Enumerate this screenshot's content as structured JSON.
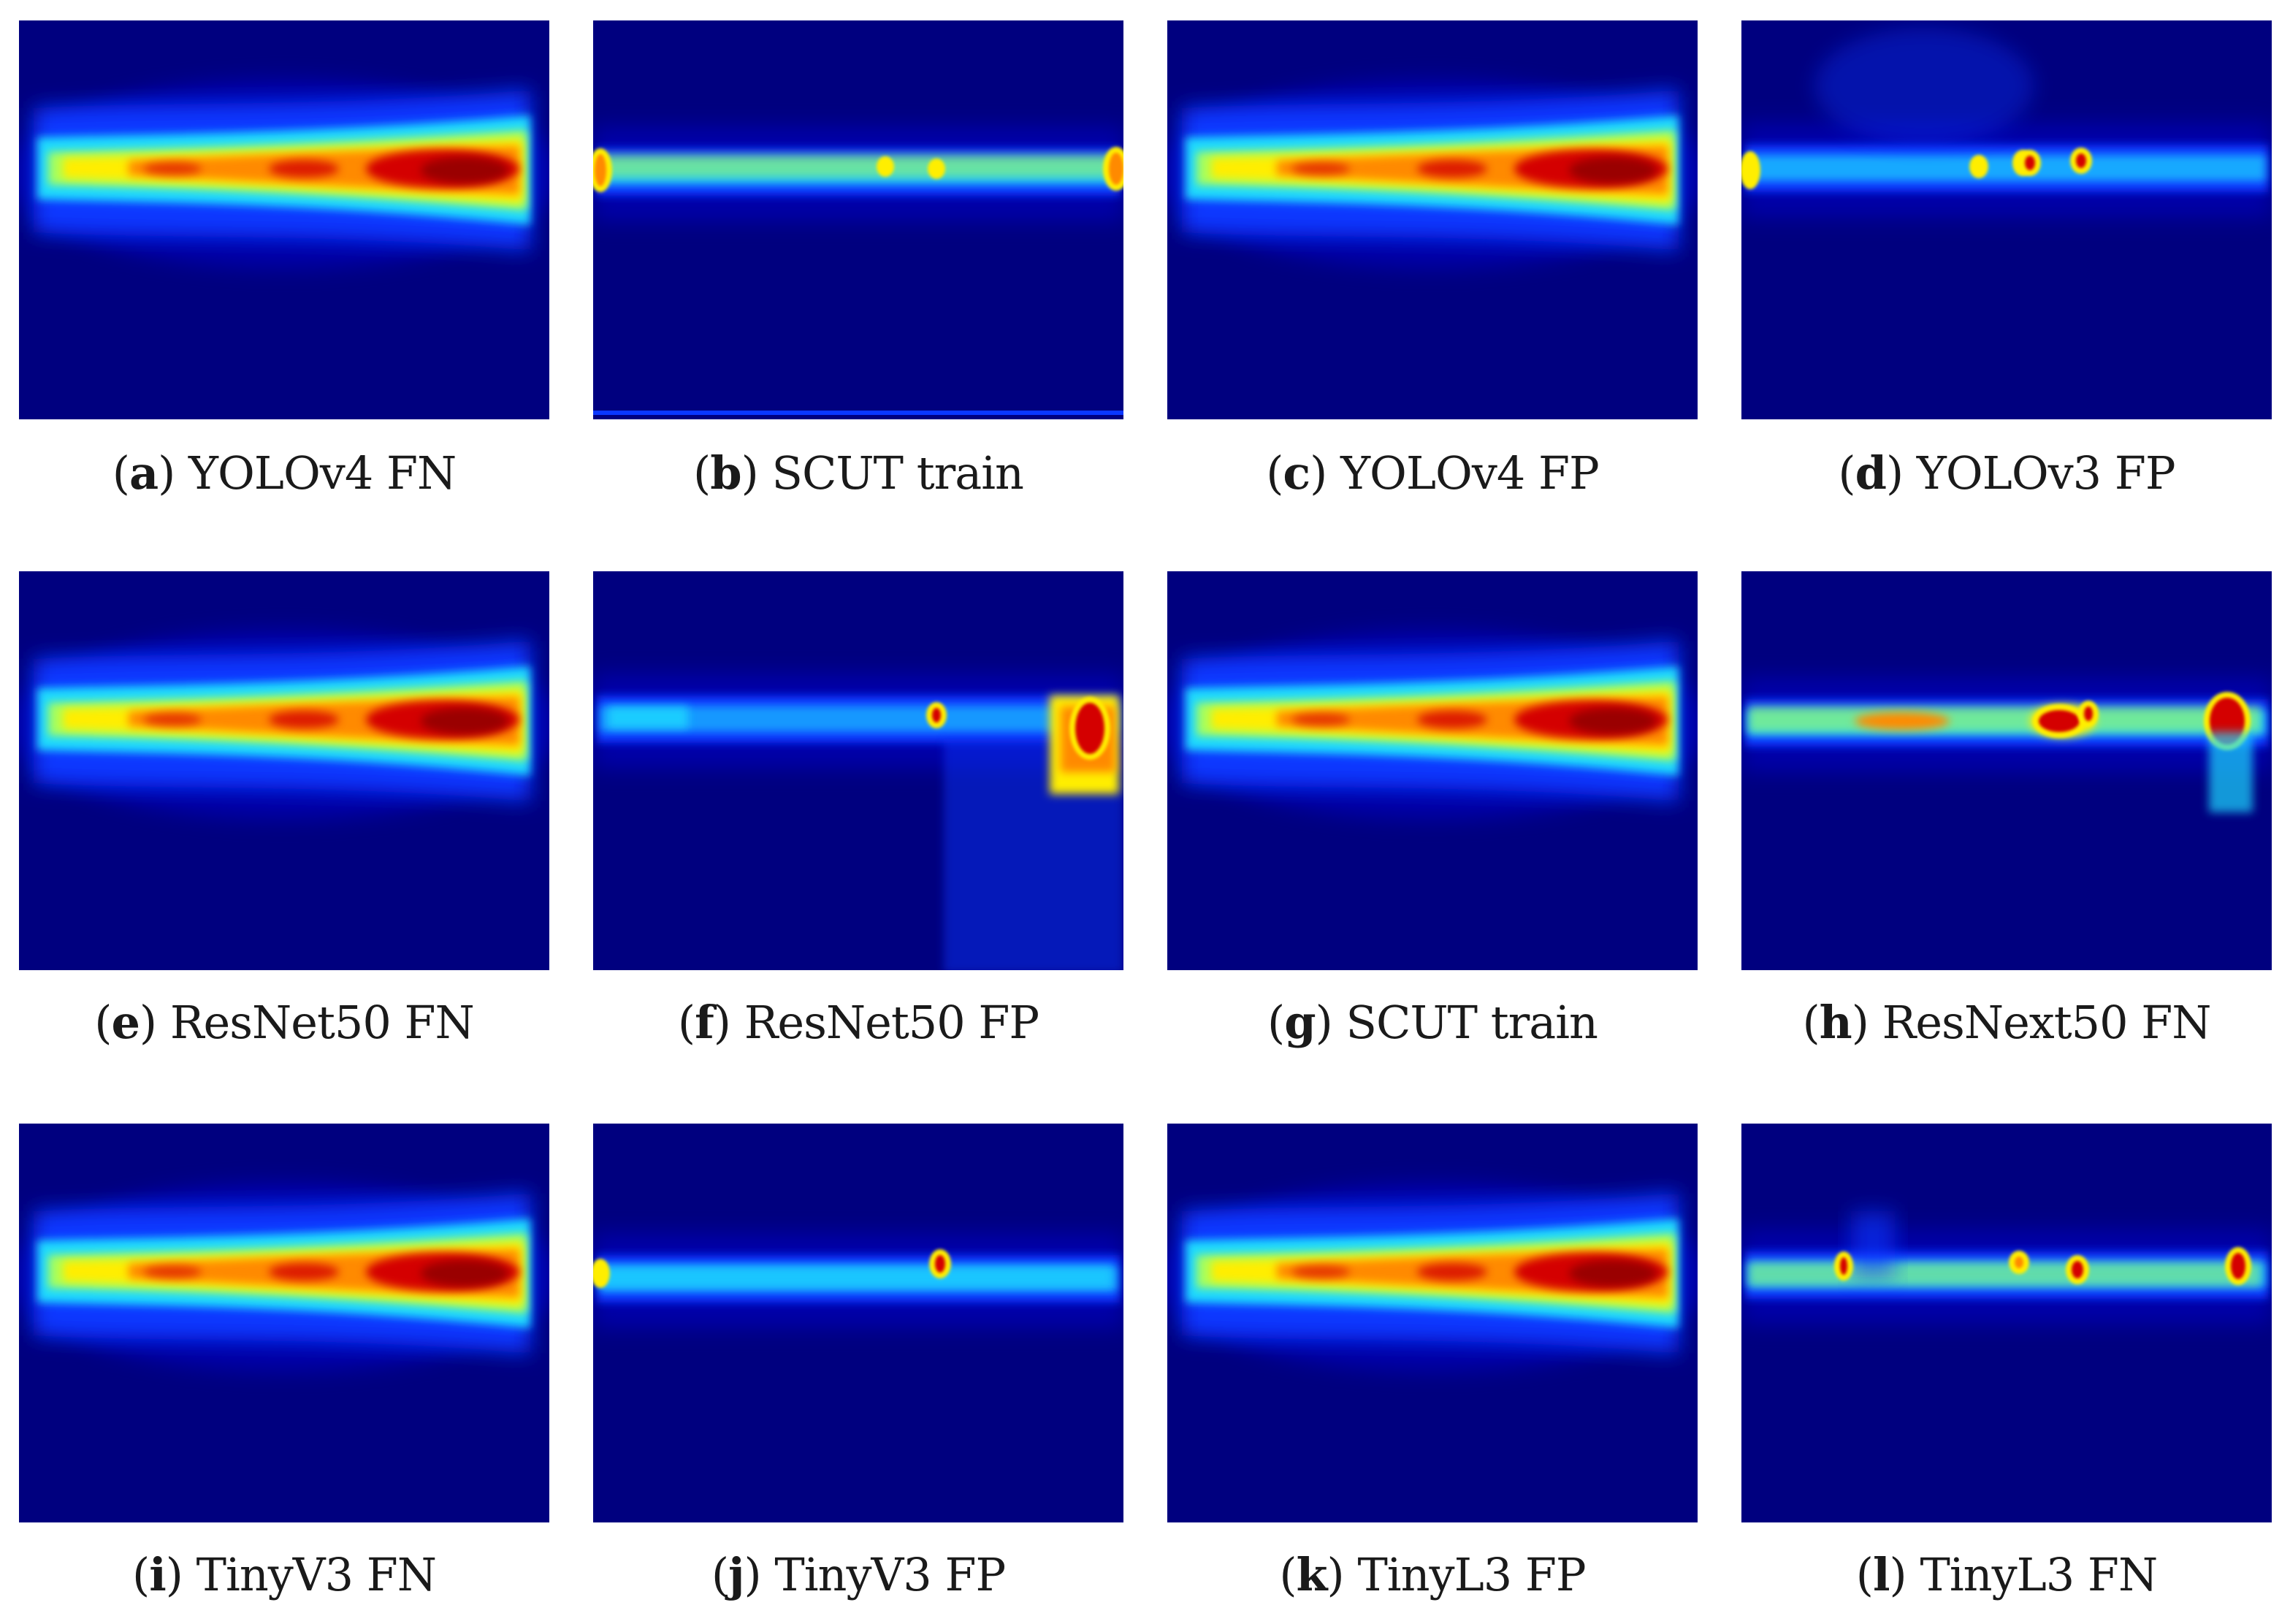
{
  "figure": {
    "panels": [
      {
        "letter": "a",
        "text": "YOLOv4 FN",
        "variant": "smooth"
      },
      {
        "letter": "b",
        "text": "SCUT train",
        "variant": "sparse-edges"
      },
      {
        "letter": "c",
        "text": "YOLOv4 FP",
        "variant": "smooth"
      },
      {
        "letter": "d",
        "text": "YOLOv3 FP",
        "variant": "sparse-spots"
      },
      {
        "letter": "e",
        "text": "ResNet50 FN",
        "variant": "smooth"
      },
      {
        "letter": "f",
        "text": "ResNet50 FP",
        "variant": "sparse-right"
      },
      {
        "letter": "g",
        "text": "SCUT train",
        "variant": "smooth"
      },
      {
        "letter": "h",
        "text": "ResNext50 FN",
        "variant": "sparse-multi"
      },
      {
        "letter": "i",
        "text": "TinyV3 FN",
        "variant": "smooth"
      },
      {
        "letter": "j",
        "text": "TinyV3 FP",
        "variant": "sparse-spot"
      },
      {
        "letter": "k",
        "text": "TinyL3 FP",
        "variant": "smooth"
      },
      {
        "letter": "l",
        "text": "TinyL3 FN",
        "variant": "sparse-spots2"
      }
    ],
    "colors": {
      "background": "#00007f",
      "dark_blue": "#0000a8",
      "blue": "#0a37ff",
      "cyan": "#1fd9ff",
      "green": "#a8ff5a",
      "yellow": "#ffee00",
      "orange": "#ff8a00",
      "red": "#d40000",
      "dark_red": "#9a0000"
    }
  }
}
